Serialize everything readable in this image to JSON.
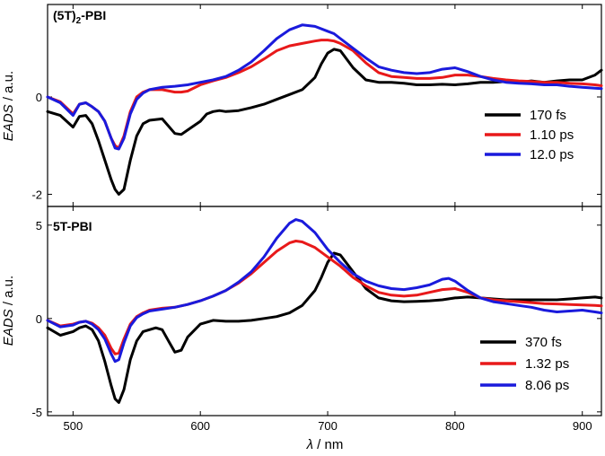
{
  "chart_data": [
    {
      "type": "line",
      "title": "(5T)2-PBI",
      "title_main": "(5T)",
      "title_sub": "2",
      "title_suffix": "-PBI",
      "xlabel_italic": "λ",
      "xlabel_unit": " / nm",
      "ylabel_italic": "EADS",
      "ylabel_unit": " / a.u.",
      "xlim": [
        480,
        915
      ],
      "ylim": [
        -2.25,
        1.9
      ],
      "xticks": [
        500,
        600,
        700,
        800,
        900
      ],
      "yticks": [
        -2,
        0
      ],
      "show_x_tick_labels": false,
      "legend_position": "right",
      "series": [
        {
          "name": "170 fs",
          "color": "#000000",
          "x": [
            480,
            490,
            500,
            505,
            510,
            515,
            520,
            525,
            530,
            533,
            536,
            540,
            545,
            550,
            555,
            560,
            570,
            580,
            585,
            590,
            600,
            605,
            610,
            615,
            620,
            630,
            640,
            650,
            660,
            670,
            680,
            690,
            695,
            700,
            705,
            710,
            720,
            730,
            740,
            750,
            760,
            770,
            780,
            790,
            800,
            810,
            820,
            830,
            840,
            850,
            860,
            870,
            880,
            890,
            900,
            910,
            915
          ],
          "y": [
            -0.3,
            -0.38,
            -0.62,
            -0.4,
            -0.38,
            -0.55,
            -0.9,
            -1.3,
            -1.7,
            -1.9,
            -2.0,
            -1.9,
            -1.3,
            -0.8,
            -0.55,
            -0.48,
            -0.45,
            -0.75,
            -0.77,
            -0.68,
            -0.5,
            -0.35,
            -0.3,
            -0.28,
            -0.3,
            -0.28,
            -0.22,
            -0.15,
            -0.05,
            0.05,
            0.15,
            0.4,
            0.68,
            0.9,
            0.98,
            0.95,
            0.6,
            0.35,
            0.3,
            0.3,
            0.28,
            0.25,
            0.25,
            0.26,
            0.25,
            0.27,
            0.3,
            0.3,
            0.32,
            0.3,
            0.33,
            0.3,
            0.33,
            0.35,
            0.35,
            0.45,
            0.55
          ]
        },
        {
          "name": "1.10 ps",
          "color": "#e8191a",
          "x": [
            480,
            490,
            500,
            505,
            510,
            515,
            520,
            525,
            530,
            533,
            536,
            540,
            545,
            550,
            555,
            560,
            570,
            580,
            585,
            590,
            600,
            610,
            620,
            630,
            640,
            650,
            660,
            670,
            680,
            690,
            695,
            700,
            705,
            710,
            720,
            730,
            740,
            750,
            760,
            770,
            780,
            790,
            800,
            810,
            820,
            830,
            840,
            850,
            860,
            870,
            880,
            890,
            900,
            910,
            915
          ],
          "y": [
            0.0,
            -0.1,
            -0.35,
            -0.15,
            -0.12,
            -0.2,
            -0.3,
            -0.5,
            -0.85,
            -1.0,
            -1.05,
            -0.8,
            -0.3,
            0.0,
            0.1,
            0.15,
            0.15,
            0.1,
            0.1,
            0.12,
            0.25,
            0.33,
            0.4,
            0.5,
            0.62,
            0.78,
            0.95,
            1.05,
            1.1,
            1.15,
            1.17,
            1.17,
            1.15,
            1.1,
            0.95,
            0.7,
            0.5,
            0.42,
            0.4,
            0.38,
            0.38,
            0.4,
            0.45,
            0.45,
            0.42,
            0.38,
            0.35,
            0.33,
            0.32,
            0.3,
            0.3,
            0.28,
            0.27,
            0.25,
            0.23
          ]
        },
        {
          "name": "12.0 ps",
          "color": "#1a1adc",
          "x": [
            480,
            490,
            500,
            505,
            510,
            515,
            520,
            525,
            530,
            533,
            536,
            540,
            545,
            550,
            555,
            560,
            570,
            580,
            590,
            600,
            610,
            620,
            630,
            640,
            650,
            660,
            670,
            680,
            690,
            700,
            705,
            710,
            720,
            730,
            740,
            750,
            760,
            770,
            780,
            790,
            800,
            810,
            820,
            830,
            840,
            850,
            860,
            870,
            880,
            890,
            900,
            910,
            915
          ],
          "y": [
            0.0,
            -0.12,
            -0.38,
            -0.15,
            -0.12,
            -0.2,
            -0.3,
            -0.5,
            -0.85,
            -1.05,
            -1.07,
            -0.85,
            -0.35,
            -0.05,
            0.08,
            0.15,
            0.2,
            0.22,
            0.25,
            0.3,
            0.35,
            0.42,
            0.55,
            0.72,
            0.95,
            1.2,
            1.38,
            1.48,
            1.45,
            1.35,
            1.3,
            1.2,
            1.0,
            0.8,
            0.62,
            0.55,
            0.5,
            0.48,
            0.5,
            0.57,
            0.6,
            0.52,
            0.42,
            0.35,
            0.3,
            0.28,
            0.27,
            0.25,
            0.25,
            0.22,
            0.2,
            0.18,
            0.17
          ]
        }
      ]
    },
    {
      "type": "line",
      "title": "5T-PBI",
      "xlabel_italic": "λ",
      "xlabel_unit": " / nm",
      "ylabel_italic": "EADS",
      "ylabel_unit": " / a.u.",
      "xlim": [
        480,
        915
      ],
      "ylim": [
        -5.2,
        6.0
      ],
      "xticks": [
        500,
        600,
        700,
        800,
        900
      ],
      "yticks": [
        -5,
        0,
        5
      ],
      "legend_position": "bottom-right",
      "series": [
        {
          "name": "370 fs",
          "color": "#000000",
          "x": [
            480,
            490,
            500,
            505,
            510,
            515,
            520,
            525,
            530,
            533,
            536,
            540,
            545,
            550,
            555,
            560,
            565,
            570,
            575,
            580,
            585,
            590,
            600,
            610,
            620,
            630,
            640,
            650,
            660,
            670,
            680,
            690,
            695,
            700,
            705,
            710,
            720,
            730,
            740,
            750,
            760,
            770,
            780,
            790,
            800,
            810,
            820,
            830,
            840,
            850,
            860,
            870,
            880,
            890,
            900,
            910,
            915
          ],
          "y": [
            -0.5,
            -0.9,
            -0.7,
            -0.5,
            -0.4,
            -0.6,
            -1.2,
            -2.3,
            -3.6,
            -4.3,
            -4.5,
            -3.8,
            -2.2,
            -1.2,
            -0.7,
            -0.6,
            -0.5,
            -0.6,
            -1.2,
            -1.8,
            -1.7,
            -1.0,
            -0.3,
            -0.1,
            -0.15,
            -0.15,
            -0.1,
            0.0,
            0.1,
            0.3,
            0.7,
            1.5,
            2.2,
            3.0,
            3.5,
            3.4,
            2.5,
            1.6,
            1.1,
            0.95,
            0.9,
            0.92,
            0.95,
            1.0,
            1.1,
            1.15,
            1.1,
            1.05,
            1.0,
            1.0,
            1.0,
            1.0,
            1.0,
            1.05,
            1.1,
            1.15,
            1.1
          ]
        },
        {
          "name": "1.32 ps",
          "color": "#e8191a",
          "x": [
            480,
            490,
            500,
            505,
            510,
            515,
            520,
            525,
            530,
            533,
            536,
            540,
            545,
            550,
            555,
            560,
            570,
            580,
            590,
            600,
            610,
            620,
            630,
            640,
            650,
            660,
            670,
            675,
            680,
            690,
            700,
            710,
            720,
            730,
            740,
            750,
            760,
            770,
            780,
            790,
            800,
            810,
            820,
            830,
            840,
            850,
            860,
            870,
            880,
            890,
            900,
            910,
            915
          ],
          "y": [
            -0.1,
            -0.4,
            -0.3,
            -0.2,
            -0.15,
            -0.25,
            -0.5,
            -0.9,
            -1.6,
            -1.9,
            -1.85,
            -1.1,
            -0.3,
            0.1,
            0.3,
            0.45,
            0.55,
            0.6,
            0.75,
            0.95,
            1.2,
            1.5,
            1.9,
            2.4,
            3.0,
            3.6,
            4.05,
            4.15,
            4.1,
            3.8,
            3.3,
            2.8,
            2.2,
            1.75,
            1.4,
            1.25,
            1.2,
            1.25,
            1.4,
            1.55,
            1.6,
            1.4,
            1.1,
            1.0,
            0.95,
            0.9,
            0.85,
            0.8,
            0.78,
            0.75,
            0.72,
            0.7,
            0.68
          ]
        },
        {
          "name": "8.06 ps",
          "color": "#1a1adc",
          "x": [
            480,
            490,
            500,
            505,
            510,
            515,
            520,
            525,
            530,
            533,
            536,
            540,
            545,
            550,
            555,
            560,
            570,
            580,
            590,
            600,
            610,
            620,
            630,
            640,
            650,
            660,
            670,
            675,
            680,
            690,
            700,
            710,
            720,
            730,
            740,
            750,
            760,
            770,
            780,
            790,
            795,
            800,
            810,
            820,
            830,
            840,
            850,
            860,
            870,
            880,
            890,
            900,
            910,
            915
          ],
          "y": [
            -0.1,
            -0.45,
            -0.35,
            -0.2,
            -0.15,
            -0.3,
            -0.6,
            -1.1,
            -1.9,
            -2.3,
            -2.2,
            -1.3,
            -0.4,
            0.05,
            0.25,
            0.4,
            0.5,
            0.6,
            0.75,
            0.95,
            1.2,
            1.5,
            1.95,
            2.5,
            3.3,
            4.3,
            5.1,
            5.3,
            5.2,
            4.6,
            3.7,
            3.0,
            2.4,
            2.0,
            1.75,
            1.6,
            1.55,
            1.65,
            1.8,
            2.1,
            2.15,
            2.0,
            1.5,
            1.1,
            0.9,
            0.8,
            0.7,
            0.6,
            0.45,
            0.35,
            0.4,
            0.45,
            0.35,
            0.3
          ]
        }
      ]
    }
  ]
}
